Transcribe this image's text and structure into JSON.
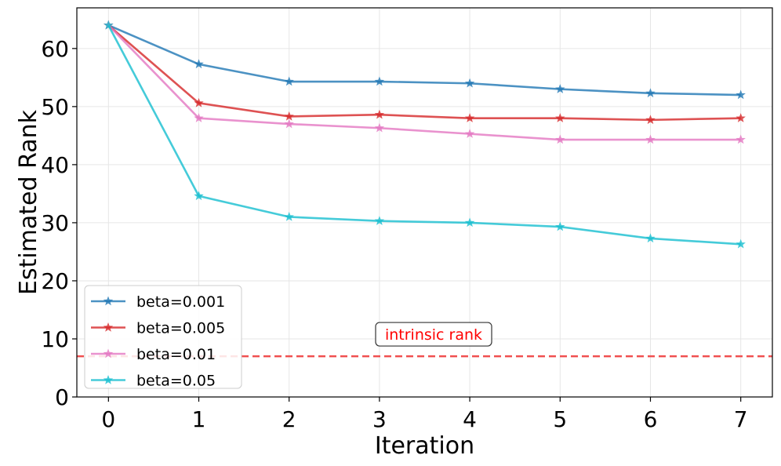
{
  "chart_data": {
    "type": "line",
    "x": [
      0,
      1,
      2,
      3,
      4,
      5,
      6,
      7
    ],
    "series": [
      {
        "name": "beta=0.001",
        "values": [
          64,
          57.3,
          54.3,
          54.3,
          54.0,
          53.0,
          52.3,
          52.0
        ],
        "color": "#1f77b4"
      },
      {
        "name": "beta=0.005",
        "values": [
          64,
          50.6,
          48.3,
          48.6,
          48.0,
          48.0,
          47.7,
          48.0
        ],
        "color": "#d62728"
      },
      {
        "name": "beta=0.01",
        "values": [
          64,
          48.0,
          47.0,
          46.3,
          45.3,
          44.3,
          44.3,
          44.3
        ],
        "color": "#e377c2"
      },
      {
        "name": "beta=0.05",
        "values": [
          64,
          34.6,
          31.0,
          30.3,
          30.0,
          29.3,
          27.3,
          26.3
        ],
        "color": "#17becf"
      }
    ],
    "xlabel": "Iteration",
    "ylabel": "Estimated Rank",
    "xlim": [
      -0.35,
      7.35
    ],
    "ylim": [
      0,
      67
    ],
    "xticks": [
      0,
      1,
      2,
      3,
      4,
      5,
      6,
      7
    ],
    "yticks": [
      0,
      10,
      20,
      30,
      40,
      50,
      60
    ],
    "grid": true,
    "legend_position": "lower-left",
    "marker": "star",
    "reference_line": {
      "y": 7,
      "style": "dashed",
      "color": "#f05050"
    },
    "annotation": {
      "text": "intrinsic rank",
      "x": 3.6,
      "y": 10.8,
      "color": "#ff0000"
    }
  }
}
